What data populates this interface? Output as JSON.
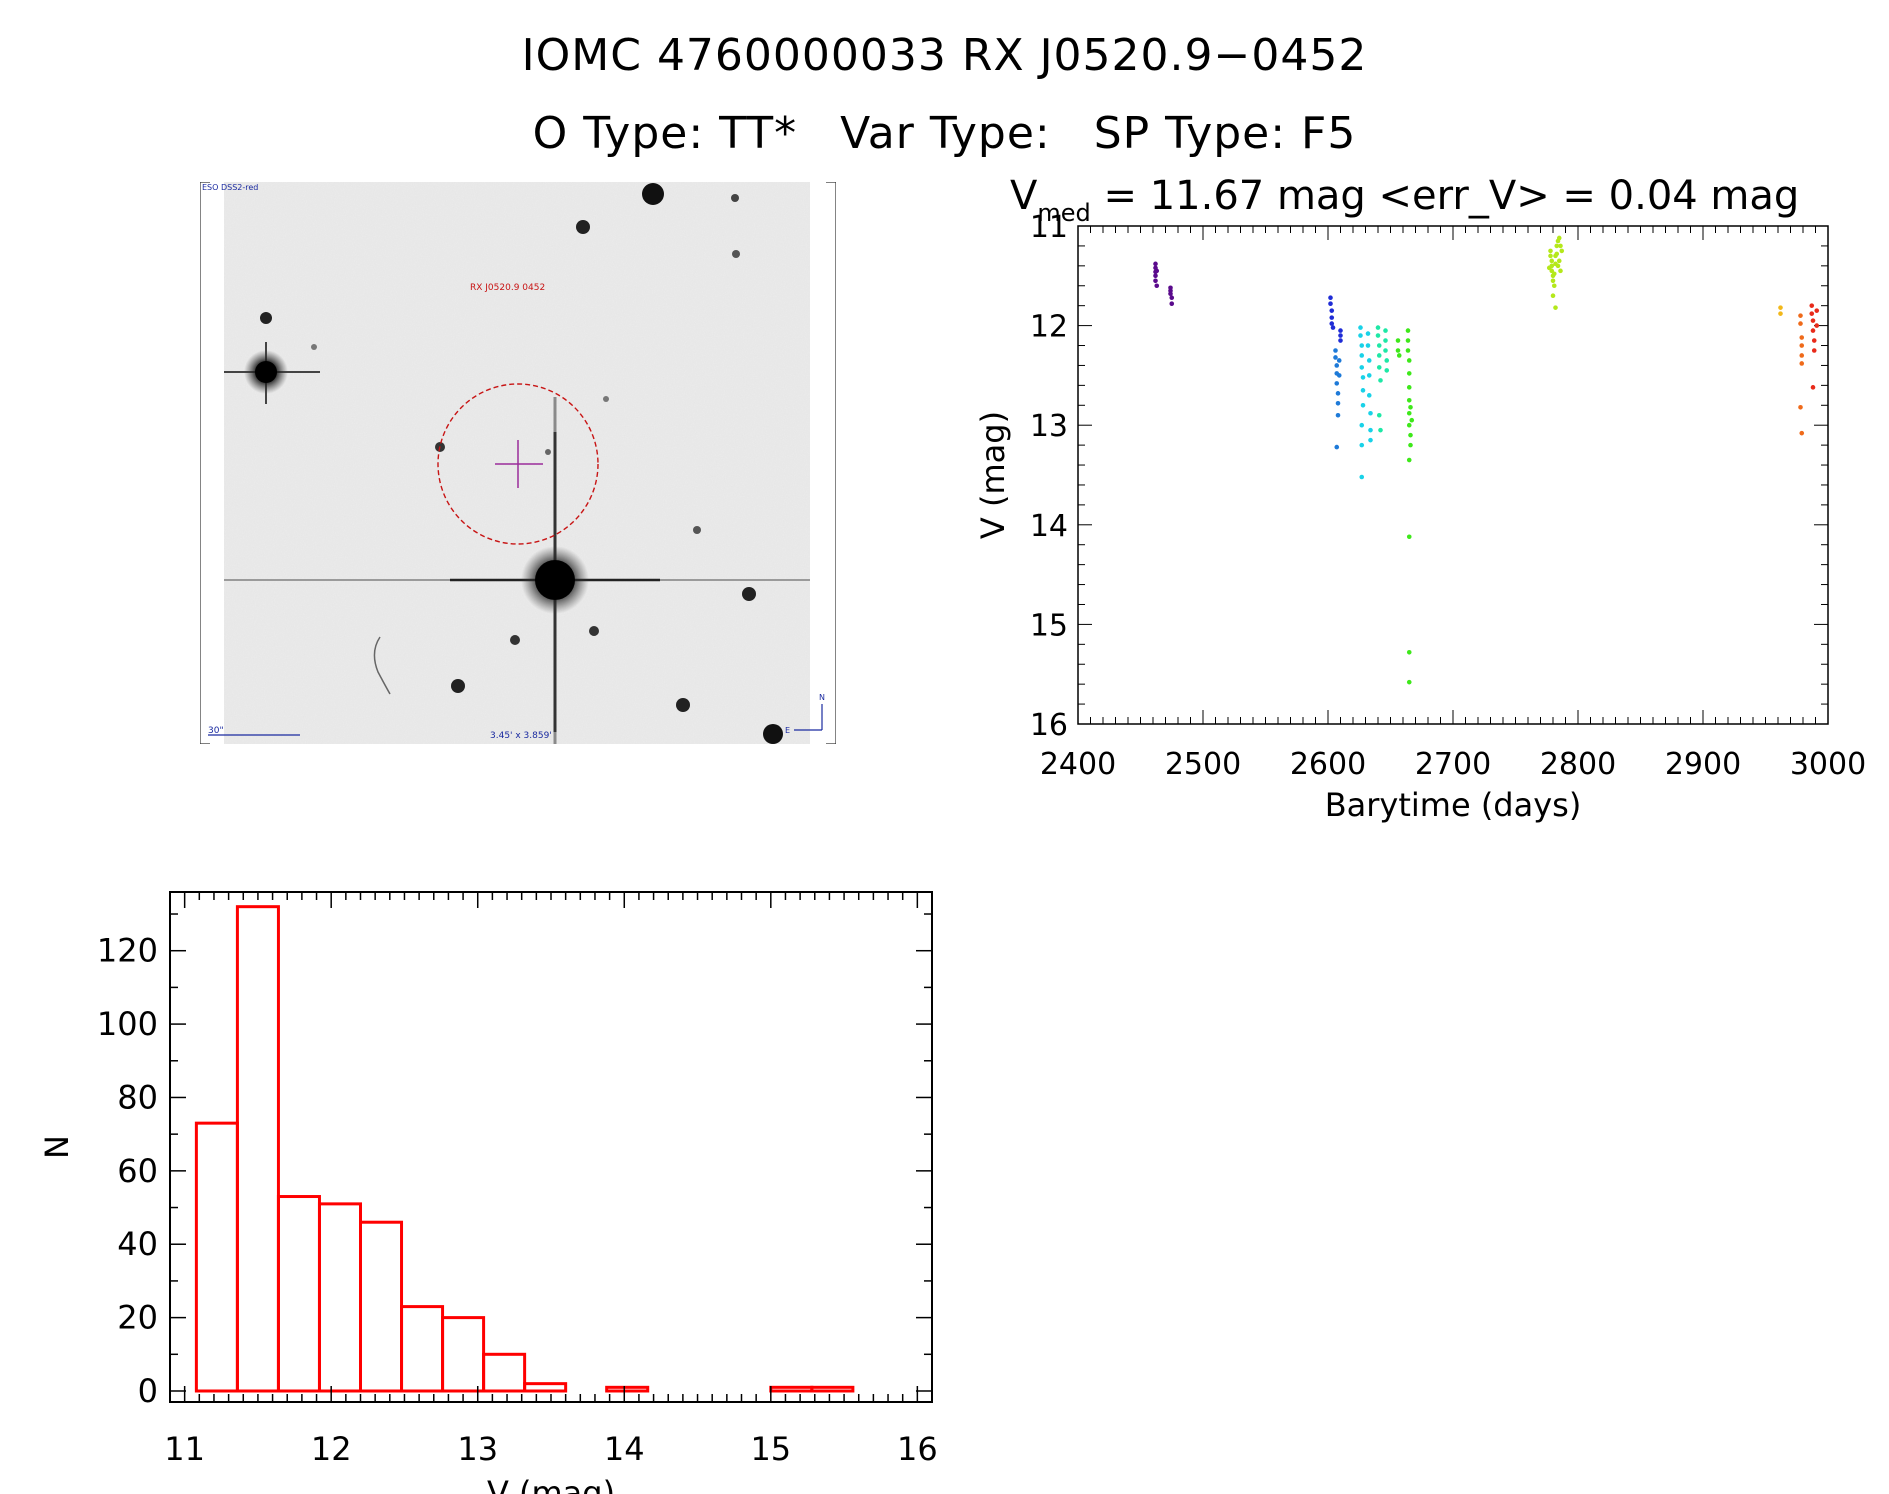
{
  "header": {
    "title_line1": "IOMC 4760000033    RX J0520.9−0452",
    "otype_label": "O Type: TT*",
    "vartype_label": "Var Type:",
    "sptype_label": "SP Type: F5"
  },
  "finder_chart": {
    "survey_label": "ESO DSS2-red",
    "target_label": "RX J0520.9  0452",
    "scale_label": "30\"",
    "fov_label": "3.45' x 3.859'",
    "north_label": "N",
    "east_label": "E"
  },
  "chart_data": [
    {
      "type": "scatter",
      "title_prefix": "V",
      "title_sub": "med",
      "title_rest": " = 11.67 mag <err_V> = 0.04 mag",
      "xlabel": "Barytime (days)",
      "ylabel": "V (mag)",
      "xlim": [
        2400,
        3000
      ],
      "ylim": [
        11,
        16
      ],
      "y_inverted": true,
      "xticks": [
        2400,
        2500,
        2600,
        2700,
        2800,
        2900,
        3000
      ],
      "yticks": [
        11,
        12,
        13,
        14,
        15,
        16
      ],
      "series": [
        {
          "name": "g1",
          "color": "#5a0a8c",
          "points": [
            [
              2462,
              11.38
            ],
            [
              2462,
              11.42
            ],
            [
              2462,
              11.46
            ],
            [
              2462,
              11.5
            ],
            [
              2462,
              11.55
            ],
            [
              2463,
              11.6
            ],
            [
              2463,
              11.45
            ],
            [
              2474,
              11.62
            ],
            [
              2474,
              11.68
            ],
            [
              2475,
              11.72
            ],
            [
              2475,
              11.78
            ],
            [
              2474,
              11.65
            ]
          ]
        },
        {
          "name": "g2",
          "color": "#1f2cd6",
          "points": [
            [
              2602,
              11.72
            ],
            [
              2602,
              11.78
            ],
            [
              2603,
              11.85
            ],
            [
              2603,
              11.92
            ],
            [
              2603,
              11.98
            ],
            [
              2604,
              12.02
            ],
            [
              2610,
              12.05
            ],
            [
              2610,
              12.1
            ],
            [
              2610,
              12.15
            ]
          ]
        },
        {
          "name": "g3",
          "color": "#1e7ad8",
          "points": [
            [
              2606,
              12.25
            ],
            [
              2606,
              12.32
            ],
            [
              2607,
              12.4
            ],
            [
              2607,
              12.48
            ],
            [
              2607,
              12.58
            ],
            [
              2608,
              12.68
            ],
            [
              2608,
              12.78
            ],
            [
              2608,
              12.9
            ],
            [
              2607,
              13.22
            ],
            [
              2609,
              12.35
            ],
            [
              2609,
              12.5
            ]
          ]
        },
        {
          "name": "g4",
          "color": "#19d2e8",
          "points": [
            [
              2626,
              12.02
            ],
            [
              2626,
              12.1
            ],
            [
              2627,
              12.2
            ],
            [
              2627,
              12.3
            ],
            [
              2627,
              12.42
            ],
            [
              2628,
              12.52
            ],
            [
              2628,
              12.65
            ],
            [
              2628,
              12.8
            ],
            [
              2627,
              13.0
            ],
            [
              2627,
              13.2
            ],
            [
              2627,
              13.52
            ],
            [
              2632,
              12.08
            ],
            [
              2632,
              12.2
            ],
            [
              2633,
              12.35
            ],
            [
              2633,
              12.5
            ],
            [
              2633,
              12.7
            ],
            [
              2634,
              12.88
            ],
            [
              2634,
              13.05
            ],
            [
              2634,
              13.15
            ]
          ]
        },
        {
          "name": "g5",
          "color": "#1ee8a6",
          "points": [
            [
              2640,
              12.02
            ],
            [
              2640,
              12.1
            ],
            [
              2641,
              12.2
            ],
            [
              2641,
              12.3
            ],
            [
              2641,
              12.42
            ],
            [
              2642,
              12.55
            ],
            [
              2641,
              12.9
            ],
            [
              2642,
              13.05
            ],
            [
              2646,
              12.05
            ],
            [
              2646,
              12.15
            ],
            [
              2646,
              12.25
            ],
            [
              2647,
              12.35
            ],
            [
              2647,
              12.45
            ]
          ]
        },
        {
          "name": "g6",
          "color": "#3ee81a",
          "points": [
            [
              2656,
              12.15
            ],
            [
              2656,
              12.25
            ],
            [
              2657,
              12.3
            ],
            [
              2664,
              12.05
            ],
            [
              2664,
              12.15
            ],
            [
              2664,
              12.25
            ],
            [
              2665,
              12.35
            ],
            [
              2665,
              12.48
            ],
            [
              2665,
              12.62
            ],
            [
              2665,
              12.75
            ],
            [
              2665,
              12.88
            ],
            [
              2665,
              13.0
            ],
            [
              2666,
              13.1
            ],
            [
              2666,
              13.2
            ],
            [
              2665,
              13.35
            ],
            [
              2665,
              14.12
            ],
            [
              2665,
              15.28
            ],
            [
              2665,
              15.58
            ],
            [
              2666,
              12.82
            ],
            [
              2667,
              12.95
            ]
          ]
        },
        {
          "name": "g7",
          "color": "#b4e81a",
          "points": [
            [
              2778,
              11.25
            ],
            [
              2778,
              11.3
            ],
            [
              2779,
              11.35
            ],
            [
              2779,
              11.4
            ],
            [
              2779,
              11.45
            ],
            [
              2780,
              11.5
            ],
            [
              2780,
              11.55
            ],
            [
              2781,
              11.6
            ],
            [
              2782,
              11.3
            ],
            [
              2782,
              11.38
            ],
            [
              2783,
              11.2
            ],
            [
              2783,
              11.28
            ],
            [
              2784,
              11.15
            ],
            [
              2784,
              11.4
            ],
            [
              2785,
              11.12
            ],
            [
              2785,
              11.35
            ],
            [
              2786,
              11.2
            ],
            [
              2786,
              11.45
            ],
            [
              2787,
              11.25
            ],
            [
              2780,
              11.7
            ],
            [
              2782,
              11.82
            ],
            [
              2777,
              11.42
            ],
            [
              2781,
              11.48
            ]
          ]
        },
        {
          "name": "g8",
          "color": "#f2b81a",
          "points": [
            [
              2962,
              11.82
            ],
            [
              2962,
              11.88
            ]
          ]
        },
        {
          "name": "g9",
          "color": "#ef6a1a",
          "points": [
            [
              2978,
              11.9
            ],
            [
              2978,
              11.98
            ],
            [
              2979,
              12.12
            ],
            [
              2979,
              12.2
            ],
            [
              2979,
              12.3
            ],
            [
              2979,
              12.38
            ],
            [
              2978,
              12.82
            ],
            [
              2979,
              13.08
            ]
          ]
        },
        {
          "name": "g10",
          "color": "#e82a1a",
          "points": [
            [
              2987,
              11.8
            ],
            [
              2987,
              11.88
            ],
            [
              2988,
              11.95
            ],
            [
              2988,
              12.05
            ],
            [
              2989,
              12.15
            ],
            [
              2989,
              12.25
            ],
            [
              2988,
              12.62
            ],
            [
              2991,
              11.85
            ],
            [
              2991,
              12.0
            ]
          ]
        }
      ]
    },
    {
      "type": "bar",
      "style": "histogram",
      "xlabel": "V (mag)",
      "ylabel": "N",
      "xlim": [
        10.9,
        16.1
      ],
      "ylim": [
        -3,
        136
      ],
      "xticks": [
        11,
        12,
        13,
        14,
        15,
        16
      ],
      "yticks": [
        0,
        20,
        40,
        60,
        80,
        100,
        120
      ],
      "bin_edges": [
        11.08,
        11.36,
        11.64,
        11.92,
        12.2,
        12.48,
        12.76,
        13.04,
        13.32,
        13.6,
        13.88,
        14.16,
        14.44,
        14.72,
        15.0,
        15.28,
        15.56
      ],
      "counts": [
        73,
        132,
        53,
        51,
        46,
        23,
        20,
        10,
        2,
        0,
        1,
        0,
        0,
        0,
        1,
        1
      ],
      "color": "#ff0000"
    }
  ]
}
